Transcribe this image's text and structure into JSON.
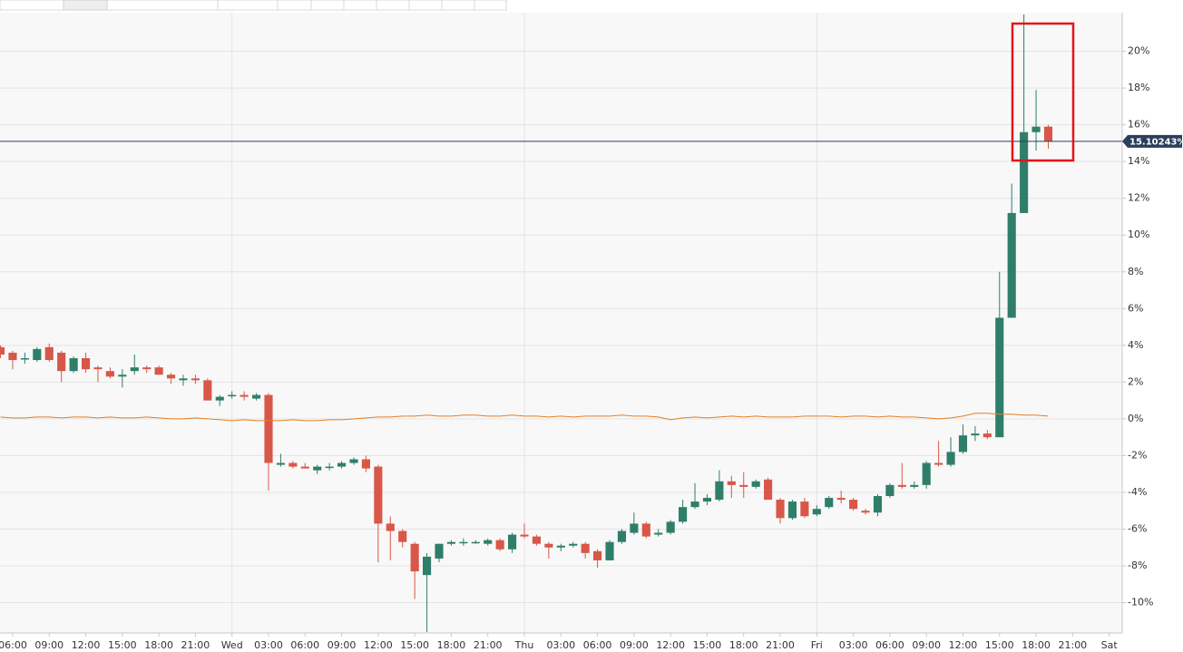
{
  "chart_data": {
    "type": "candlestick",
    "x": [
      -1,
      0,
      1,
      2,
      3,
      4,
      5,
      6,
      7,
      8,
      9,
      10,
      11,
      12,
      13,
      14,
      15,
      16,
      17,
      18,
      19,
      20,
      21,
      22,
      23,
      24,
      25,
      26,
      27,
      28,
      29,
      30,
      31,
      32,
      33,
      34,
      35,
      36,
      37,
      38,
      39,
      40,
      41,
      42,
      43,
      44,
      45,
      46,
      47,
      48,
      49,
      50,
      51,
      52,
      53,
      54,
      55,
      56,
      57,
      58,
      59,
      60,
      61,
      62,
      63,
      64,
      65,
      66,
      67,
      68,
      69,
      70,
      71,
      72,
      73,
      74,
      75,
      76,
      77,
      78,
      79,
      80,
      81,
      82,
      83,
      84,
      85
    ],
    "open": [
      3.9,
      3.6,
      3.3,
      3.2,
      3.9,
      3.6,
      2.6,
      3.3,
      2.8,
      2.6,
      2.3,
      2.6,
      2.8,
      2.8,
      2.4,
      2.1,
      2.2,
      2.1,
      1.0,
      1.3,
      1.3,
      1.1,
      1.3,
      -2.5,
      -2.4,
      -2.6,
      -2.8,
      -2.6,
      -2.6,
      -2.4,
      -2.2,
      -2.6,
      -5.7,
      -6.1,
      -6.8,
      -8.5,
      -7.6,
      -6.8,
      -6.7,
      -6.7,
      -6.8,
      -6.6,
      -7.1,
      -6.3,
      -6.4,
      -6.8,
      -7.0,
      -6.9,
      -6.8,
      -7.2,
      -7.7,
      -6.7,
      -6.2,
      -5.7,
      -6.3,
      -6.2,
      -5.6,
      -4.8,
      -4.5,
      -4.4,
      -3.4,
      -3.6,
      -3.7,
      -3.3,
      -4.4,
      -5.4,
      -4.5,
      -5.2,
      -4.8,
      -4.3,
      -4.4,
      -5.0,
      -5.1,
      -4.2,
      -3.6,
      -3.7,
      -3.6,
      -2.4,
      -2.5,
      -1.8,
      -0.9,
      -0.8,
      -1.0,
      5.5,
      11.2,
      15.6,
      15.9
    ],
    "high": [
      4.0,
      3.7,
      3.6,
      3.9,
      4.1,
      3.7,
      3.4,
      3.6,
      2.9,
      2.8,
      2.7,
      3.5,
      2.9,
      2.9,
      2.5,
      2.4,
      2.4,
      2.2,
      1.3,
      1.5,
      1.5,
      1.4,
      1.4,
      -1.9,
      -2.3,
      -2.4,
      -2.5,
      -2.4,
      -2.3,
      -2.1,
      -2.0,
      -2.5,
      -5.3,
      -6.0,
      -6.7,
      -7.3,
      -6.8,
      -6.6,
      -6.5,
      -6.6,
      -6.5,
      -6.5,
      -6.2,
      -5.7,
      -6.3,
      -6.7,
      -6.8,
      -6.7,
      -6.7,
      -7.1,
      -6.6,
      -6.0,
      -5.1,
      -5.6,
      -6.0,
      -5.5,
      -4.4,
      -3.5,
      -4.1,
      -2.8,
      -3.1,
      -2.9,
      -3.3,
      -3.2,
      -4.3,
      -4.4,
      -4.3,
      -4.7,
      -4.2,
      -3.9,
      -4.3,
      -4.9,
      -4.1,
      -3.5,
      -2.4,
      -3.4,
      -2.3,
      -1.2,
      -1.0,
      -0.3,
      -0.4,
      -0.6,
      8.0,
      12.8,
      22.0,
      17.9,
      16.0
    ],
    "low": [
      3.3,
      2.7,
      3.0,
      3.1,
      3.1,
      2.0,
      2.5,
      2.5,
      2.0,
      2.2,
      1.7,
      2.4,
      2.5,
      2.4,
      1.9,
      1.8,
      1.9,
      1.0,
      0.7,
      1.1,
      1.0,
      1.0,
      -3.9,
      -2.6,
      -2.7,
      -2.7,
      -3.0,
      -2.8,
      -2.7,
      -2.5,
      -2.9,
      -7.8,
      -7.7,
      -7.0,
      -9.8,
      -11.6,
      -7.8,
      -6.9,
      -6.9,
      -6.8,
      -6.9,
      -7.2,
      -7.3,
      -6.5,
      -6.9,
      -7.6,
      -7.2,
      -7.0,
      -7.6,
      -8.1,
      -7.7,
      -6.8,
      -6.3,
      -6.5,
      -6.4,
      -6.3,
      -5.7,
      -4.9,
      -4.7,
      -4.5,
      -4.3,
      -4.3,
      -3.8,
      -4.4,
      -5.7,
      -5.5,
      -5.4,
      -5.3,
      -4.9,
      -4.6,
      -5.0,
      -5.2,
      -5.3,
      -4.3,
      -3.8,
      -3.8,
      -3.8,
      -2.6,
      -2.6,
      -1.9,
      -1.2,
      -1.1,
      -1.0,
      5.5,
      11.2,
      14.6,
      14.7
    ],
    "close": [
      3.5,
      3.2,
      3.3,
      3.8,
      3.2,
      2.6,
      3.3,
      2.7,
      2.7,
      2.3,
      2.4,
      2.8,
      2.7,
      2.4,
      2.2,
      2.2,
      2.1,
      1.0,
      1.2,
      1.3,
      1.2,
      1.3,
      -2.4,
      -2.4,
      -2.6,
      -2.7,
      -2.6,
      -2.6,
      -2.4,
      -2.2,
      -2.7,
      -5.7,
      -6.1,
      -6.7,
      -8.3,
      -7.5,
      -6.8,
      -6.7,
      -6.7,
      -6.7,
      -6.6,
      -7.1,
      -6.3,
      -6.4,
      -6.8,
      -7.0,
      -6.9,
      -6.8,
      -7.3,
      -7.7,
      -6.7,
      -6.1,
      -5.7,
      -6.4,
      -6.2,
      -5.6,
      -4.8,
      -4.5,
      -4.3,
      -3.4,
      -3.6,
      -3.7,
      -3.4,
      -4.4,
      -5.4,
      -4.5,
      -5.3,
      -4.9,
      -4.3,
      -4.4,
      -4.9,
      -5.1,
      -4.2,
      -3.6,
      -3.7,
      -3.6,
      -2.4,
      -2.5,
      -1.8,
      -0.9,
      -0.8,
      -1.0,
      5.5,
      11.2,
      15.6,
      15.9,
      15.1
    ],
    "up_color": "#2f7e6a",
    "down_color": "#d85748",
    "overlay": {
      "color": "#e67e22",
      "values": [
        0.1,
        0.05,
        0.05,
        0.1,
        0.1,
        0.05,
        0.1,
        0.1,
        0.05,
        0.1,
        0.05,
        0.05,
        0.1,
        0.05,
        0,
        0,
        0.05,
        0,
        -0.05,
        -0.1,
        -0.05,
        -0.1,
        -0.1,
        -0.1,
        -0.05,
        -0.1,
        -0.1,
        -0.05,
        -0.05,
        0,
        0.05,
        0.1,
        0.1,
        0.15,
        0.15,
        0.2,
        0.15,
        0.15,
        0.2,
        0.2,
        0.15,
        0.15,
        0.2,
        0.15,
        0.15,
        0.1,
        0.15,
        0.1,
        0.15,
        0.15,
        0.15,
        0.2,
        0.15,
        0.15,
        0.1,
        -0.05,
        0.05,
        0.1,
        0.05,
        0.1,
        0.15,
        0.1,
        0.15,
        0.1,
        0.1,
        0.1,
        0.15,
        0.15,
        0.15,
        0.1,
        0.15,
        0.15,
        0.1,
        0.15,
        0.1,
        0.1,
        0.05,
        0,
        0.05,
        0.15,
        0.3,
        0.3,
        0.25,
        0.25,
        0.2,
        0.2,
        0.15
      ]
    },
    "price_line": {
      "value": 15.10243,
      "label": "15.10243%",
      "color": "#2b3f5c"
    },
    "xlim": [
      -1.04,
      91.07
    ],
    "ylim": [
      -11.65,
      22.1
    ],
    "xticks": [
      {
        "value": 0,
        "label": "06:00"
      },
      {
        "value": 3,
        "label": "09:00"
      },
      {
        "value": 6,
        "label": "12:00"
      },
      {
        "value": 9,
        "label": "15:00"
      },
      {
        "value": 12,
        "label": "18:00"
      },
      {
        "value": 15,
        "label": "21:00"
      },
      {
        "value": 18,
        "label": "Wed"
      },
      {
        "value": 21,
        "label": "03:00"
      },
      {
        "value": 24,
        "label": "06:00"
      },
      {
        "value": 27,
        "label": "09:00"
      },
      {
        "value": 30,
        "label": "12:00"
      },
      {
        "value": 33,
        "label": "15:00"
      },
      {
        "value": 36,
        "label": "18:00"
      },
      {
        "value": 39,
        "label": "21:00"
      },
      {
        "value": 42,
        "label": "Thu"
      },
      {
        "value": 45,
        "label": "03:00"
      },
      {
        "value": 48,
        "label": "06:00"
      },
      {
        "value": 51,
        "label": "09:00"
      },
      {
        "value": 54,
        "label": "12:00"
      },
      {
        "value": 57,
        "label": "15:00"
      },
      {
        "value": 60,
        "label": "18:00"
      },
      {
        "value": 63,
        "label": "21:00"
      },
      {
        "value": 66,
        "label": "Fri"
      },
      {
        "value": 69,
        "label": "03:00"
      },
      {
        "value": 72,
        "label": "06:00"
      },
      {
        "value": 75,
        "label": "09:00"
      },
      {
        "value": 78,
        "label": "12:00"
      },
      {
        "value": 81,
        "label": "15:00"
      },
      {
        "value": 84,
        "label": "18:00"
      },
      {
        "value": 87,
        "label": "21:00"
      },
      {
        "value": 90,
        "label": "Sat"
      }
    ],
    "yticks": [
      {
        "value": -10,
        "label": "-10%"
      },
      {
        "value": -8,
        "label": "-8%"
      },
      {
        "value": -6,
        "label": "-6%"
      },
      {
        "value": -4,
        "label": "-4%"
      },
      {
        "value": -2,
        "label": "-2%"
      },
      {
        "value": 0,
        "label": "0%"
      },
      {
        "value": 2,
        "label": "2%"
      },
      {
        "value": 4,
        "label": "4%"
      },
      {
        "value": 6,
        "label": "6%"
      },
      {
        "value": 8,
        "label": "8%"
      },
      {
        "value": 10,
        "label": "10%"
      },
      {
        "value": 12,
        "label": "12%"
      },
      {
        "value": 14,
        "label": "14%"
      },
      {
        "value": 16,
        "label": "16%"
      },
      {
        "value": 18,
        "label": "18%"
      },
      {
        "value": 20,
        "label": "20%"
      }
    ],
    "x_grid_at": [
      18,
      42,
      66
    ],
    "grid": true
  }
}
